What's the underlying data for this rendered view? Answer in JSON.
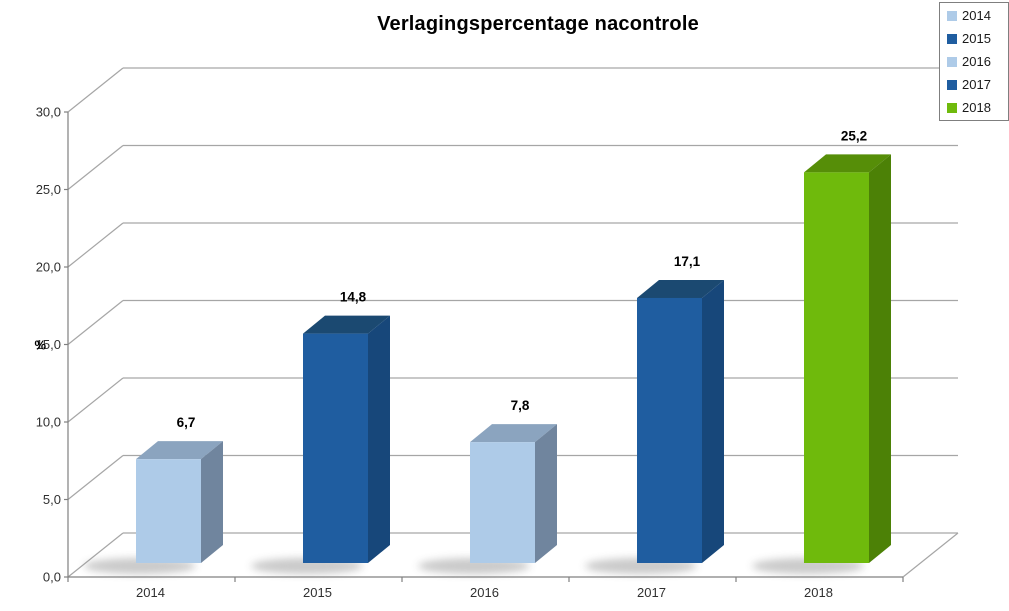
{
  "chart_data": {
    "type": "bar",
    "subtype": "3d-column",
    "title": "Verlagingspercentage nacontrole",
    "categories": [
      "2014",
      "2015",
      "2016",
      "2017",
      "2018"
    ],
    "values": [
      6.7,
      14.8,
      7.8,
      17.1,
      25.2
    ],
    "value_labels": [
      "6,7",
      "14,8",
      "7,8",
      "17,1",
      "25,2"
    ],
    "ylabel": "%",
    "ylim": [
      0,
      30
    ],
    "ytick_step": 5,
    "ytick_labels": [
      "0,0",
      "5,0",
      "10,0",
      "15,0",
      "20,0",
      "25,0",
      "30,0"
    ],
    "xtick_labels": [
      "2014",
      "2015",
      "2016",
      "2017",
      "2018"
    ],
    "grid": true,
    "legend_position": "top-right",
    "legend_entries": [
      {
        "label": "2014",
        "color": "#AECBE8"
      },
      {
        "label": "2015",
        "color": "#1F5DA0"
      },
      {
        "label": "2016",
        "color": "#AECBE8"
      },
      {
        "label": "2017",
        "color": "#1F5DA0"
      },
      {
        "label": "2018",
        "color": "#6FBA0C"
      }
    ],
    "series_faces": [
      {
        "front": "#AECBE8",
        "top": "#8BA4BF",
        "side": "#70859E"
      },
      {
        "front": "#1F5DA0",
        "top": "#1B4971",
        "side": "#17477A"
      },
      {
        "front": "#AECBE8",
        "top": "#8BA4BF",
        "side": "#70859E"
      },
      {
        "front": "#1F5DA0",
        "top": "#1B4971",
        "side": "#17477A"
      },
      {
        "front": "#6FBA0C",
        "top": "#568E08",
        "side": "#4C8106"
      }
    ]
  },
  "colors": {
    "background": "#FFFFFF",
    "gridline": "#A6A6A6",
    "axis_line": "#808080",
    "tick_label": "#303030",
    "value_label": "#000000",
    "title_text": "#000000",
    "legend_border": "#7F7F7F"
  }
}
